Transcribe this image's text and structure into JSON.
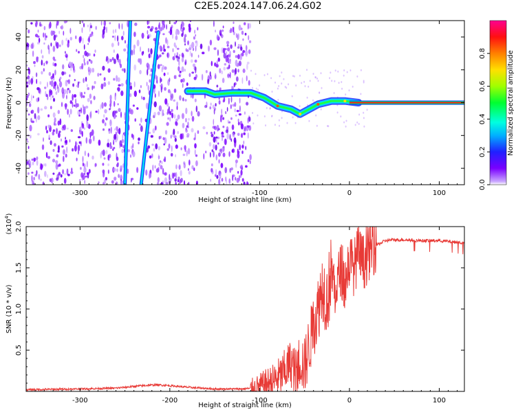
{
  "title": "C2E5.2024.147.06.24.G02",
  "chart_data": [
    {
      "type": "heatmap",
      "xlabel": "Height of straight line (km)",
      "ylabel": "Frequency (Hz)",
      "xlim": [
        -360,
        128
      ],
      "ylim": [
        -50,
        50
      ],
      "xticks": [
        -300,
        -200,
        -100,
        0,
        100
      ],
      "yticks": [
        -40,
        -20,
        0,
        20,
        40
      ],
      "colorbar": {
        "label": "Normalized spectral amplitude",
        "range": [
          0,
          1
        ],
        "ticks": [
          "0.0",
          "0.2",
          "0.4",
          "0.6",
          "0.8"
        ],
        "colormap": "rainbow (violet → blue → cyan → green → yellow → orange → red → magenta)"
      },
      "features": {
        "noise_region_x": [
          -360,
          -110
        ],
        "diagonal_streak_1": {
          "x": [
            -244,
            -250
          ],
          "y": [
            50,
            -50
          ]
        },
        "diagonal_streak_2": {
          "x": [
            -213,
            -232
          ],
          "y": [
            43,
            -50
          ]
        },
        "signal_band": [
          {
            "x": -180,
            "y": 7
          },
          {
            "x": -160,
            "y": 7
          },
          {
            "x": -150,
            "y": 5
          },
          {
            "x": -130,
            "y": 6
          },
          {
            "x": -110,
            "y": 6
          },
          {
            "x": -95,
            "y": 3
          },
          {
            "x": -80,
            "y": -2
          },
          {
            "x": -65,
            "y": -4
          },
          {
            "x": -55,
            "y": -7
          },
          {
            "x": -45,
            "y": -4
          },
          {
            "x": -35,
            "y": -1
          },
          {
            "x": -20,
            "y": 1
          },
          {
            "x": -5,
            "y": 1
          },
          {
            "x": 10,
            "y": 0
          }
        ],
        "carrier_line": {
          "x": [
            0,
            128
          ],
          "y": 0
        }
      }
    },
    {
      "type": "line",
      "xlabel": "Height of straight line (km)",
      "ylabel": "SNR (10 * v/v)",
      "scale_label": "(x10",
      "scale_exp": "4",
      "scale_close": ")",
      "xlim": [
        -360,
        128
      ],
      "ylim": [
        0,
        2.0
      ],
      "xticks": [
        -300,
        -200,
        -100,
        0,
        100
      ],
      "yticks": [
        "0.5",
        "1.0",
        "1.5",
        "2.0"
      ],
      "color": "#e83a36",
      "series": [
        {
          "x": [
            -360,
            -300,
            -260,
            -230,
            -215,
            -200,
            -180,
            -150,
            -120,
            -105,
            -95,
            -85,
            -75,
            -65,
            -60,
            -55,
            -50,
            -45,
            -40,
            -35,
            -30,
            -25,
            -20,
            -15,
            -10,
            -5,
            0,
            5,
            10,
            15,
            20,
            25,
            30,
            35,
            40,
            50,
            60,
            80,
            100,
            120,
            128
          ],
          "y": [
            0.02,
            0.03,
            0.04,
            0.07,
            0.08,
            0.07,
            0.05,
            0.03,
            0.03,
            0.04,
            0.08,
            0.12,
            0.2,
            0.35,
            0.2,
            0.4,
            0.3,
            0.55,
            0.8,
            1.0,
            1.3,
            1.1,
            1.45,
            1.2,
            1.5,
            1.3,
            1.6,
            1.5,
            1.7,
            1.55,
            1.65,
            1.75,
            1.78,
            1.8,
            1.83,
            1.84,
            1.84,
            1.83,
            1.83,
            1.81,
            1.8
          ]
        }
      ]
    }
  ]
}
